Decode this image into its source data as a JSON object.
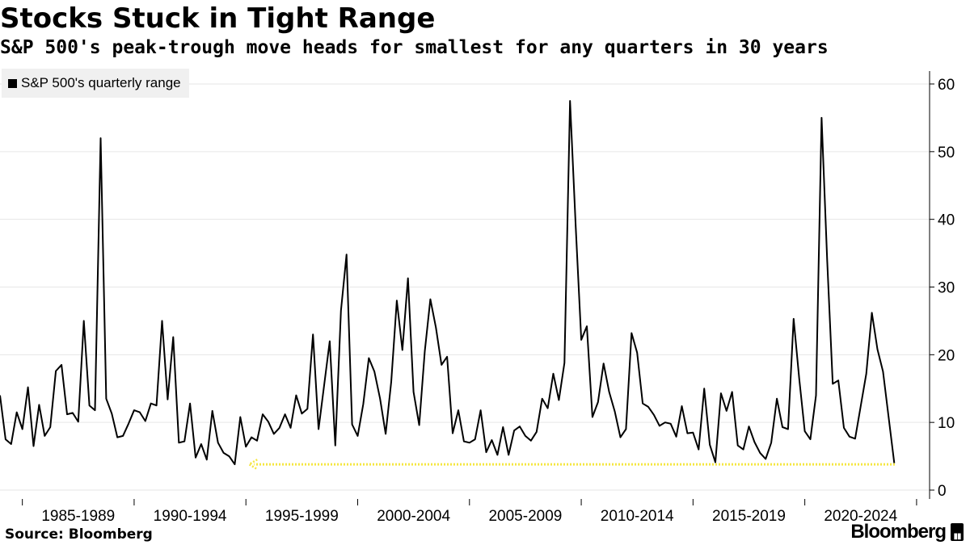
{
  "header": {
    "title": "Stocks Stuck in Tight Range",
    "subtitle": "S&P 500's peak-trough move heads for smallest for any quarters in 30 years"
  },
  "legend": {
    "label": "S&P 500's quarterly range"
  },
  "footer": {
    "source": "Source: Bloomberg",
    "brand": "Bloomberg",
    "brand_icon": "chart-bar-icon"
  },
  "colors": {
    "line": "#000000",
    "reference_arrow": "#f5e642",
    "grid": "#e6e6e6",
    "legend_bg": "#f0f0f0"
  },
  "chart_data": {
    "type": "line",
    "title": "Stocks Stuck in Tight Range",
    "subtitle": "S&P 500's peak-trough move heads for smallest for any quarters in 30 years",
    "ylim": [
      0,
      60
    ],
    "yticks": [
      0,
      10,
      20,
      30,
      40,
      50,
      60
    ],
    "y_axis_side": "right",
    "xlim": [
      1984.0,
      2024.75
    ],
    "xtick_labels": [
      "1985-1989",
      "1990-1994",
      "1995-1999",
      "2000-2004",
      "2005-2009",
      "2010-2014",
      "2015-2019",
      "2020-2024"
    ],
    "xtick_centers": [
      1987.5,
      1992.5,
      1997.5,
      2002.5,
      2007.5,
      2012.5,
      2017.5,
      2022.5
    ],
    "xtick_boundaries": [
      1985,
      1990,
      1995,
      2000,
      2005,
      2010,
      2015,
      2020,
      2025
    ],
    "legend_position": "top-left",
    "grid": "horizontal",
    "series": [
      {
        "name": "S&P 500's quarterly range",
        "x_start": 1984.0,
        "x_step": 0.25,
        "values": [
          14,
          7.5,
          6.8,
          11.5,
          9,
          15.2,
          6.5,
          12.6,
          8,
          9.3,
          17.6,
          18.5,
          11.2,
          11.4,
          10.1,
          25,
          12.5,
          11.8,
          52,
          13.5,
          11.3,
          7.8,
          8,
          9.8,
          11.8,
          11.5,
          10.2,
          12.8,
          12.5,
          25,
          13.4,
          22.6,
          7,
          7.2,
          12.8,
          4.8,
          6.8,
          4.5,
          11.7,
          7,
          5.5,
          5,
          3.8,
          10.8,
          6.4,
          7.8,
          7.3,
          11.2,
          10.1,
          8.3,
          9.2,
          11.2,
          9.2,
          14,
          11.3,
          12,
          23,
          9,
          15.5,
          22,
          6.6,
          26.5,
          34.8,
          9.7,
          8,
          12.7,
          19.5,
          17.5,
          13.5,
          8.3,
          16,
          28,
          20.7,
          31.3,
          14.5,
          9.6,
          20.5,
          28.2,
          24,
          18.5,
          19.7,
          8.4,
          11.8,
          7.2,
          7,
          7.5,
          11.8,
          5.6,
          7.4,
          5.2,
          9.3,
          5.2,
          8.8,
          9.4,
          8,
          7.3,
          8.6,
          13.5,
          12.1,
          17.2,
          13.3,
          18.8,
          57.5,
          39,
          22.2,
          24.2,
          10.8,
          13,
          18.7,
          14.5,
          11.6,
          7.8,
          9,
          23.2,
          20.3,
          12.8,
          12.3,
          11.1,
          9.5,
          10,
          9.8,
          7.9,
          12.4,
          8.4,
          8.5,
          6,
          15,
          6.7,
          4.1,
          14.3,
          11.7,
          14.5,
          6.6,
          6,
          9.4,
          7.1,
          5.5,
          4.6,
          7,
          13.5,
          9.3,
          9,
          25.3,
          16.5,
          8.7,
          7.5,
          14,
          55,
          34,
          15.7,
          16.2,
          9.2,
          7.9,
          7.6,
          12.4,
          17.2,
          26.2,
          20.8,
          17.5,
          10.8,
          4
        ]
      }
    ],
    "annotation": {
      "type": "arrow",
      "color": "#f5e642",
      "from_x": 2024.75,
      "to_x": 1995.0,
      "y": 3.8
    }
  }
}
